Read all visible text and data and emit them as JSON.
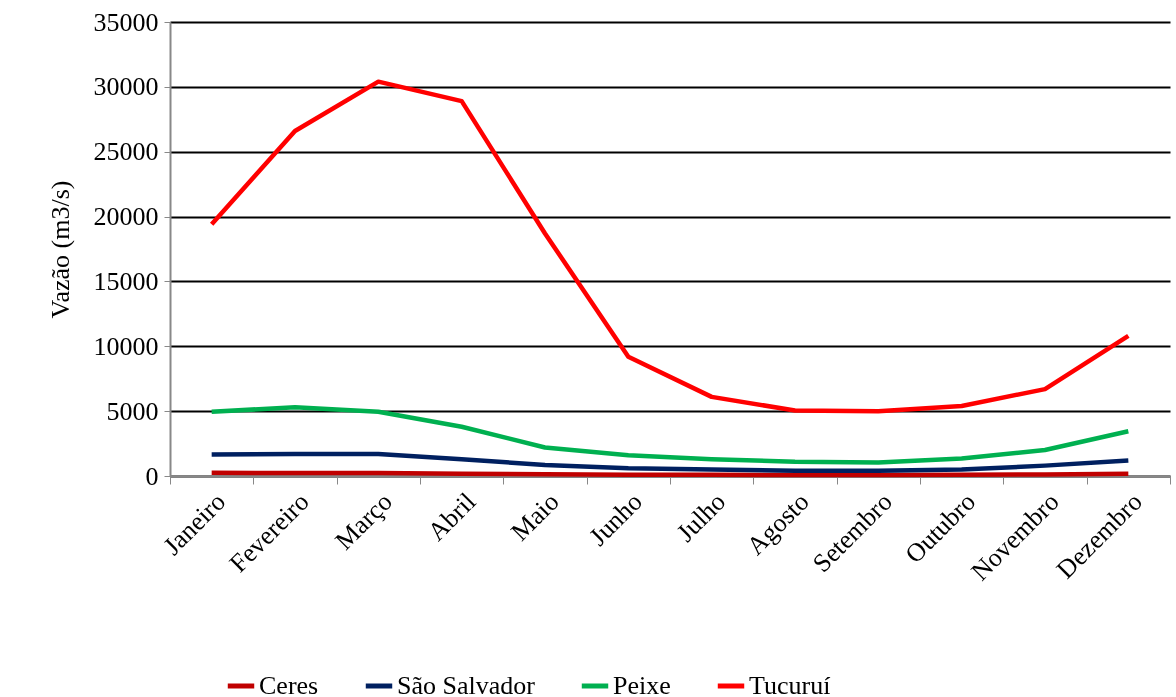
{
  "chart_data": {
    "type": "line",
    "ylabel": "Vazão (m3/s)",
    "categories": [
      "Janeiro",
      "Fevereiro",
      "Março",
      "Abril",
      "Maio",
      "Junho",
      "Julho",
      "Agosto",
      "Setembro",
      "Outubro",
      "Novembro",
      "Dezembro"
    ],
    "series": [
      {
        "name": "Ceres",
        "color": "#c00000",
        "values": [
          250,
          230,
          240,
          180,
          130,
          100,
          90,
          80,
          80,
          90,
          120,
          180
        ]
      },
      {
        "name": "São Salvador",
        "color": "#002060",
        "values": [
          1650,
          1700,
          1700,
          1300,
          850,
          600,
          500,
          400,
          400,
          500,
          800,
          1200
        ]
      },
      {
        "name": "Peixe",
        "color": "#00b050",
        "values": [
          4950,
          5300,
          4950,
          3800,
          2200,
          1600,
          1300,
          1100,
          1050,
          1350,
          2000,
          3450
        ]
      },
      {
        "name": "Tucuruí",
        "color": "#ff0000",
        "values": [
          19400,
          26600,
          30400,
          28900,
          18700,
          9200,
          6100,
          5050,
          5000,
          5400,
          6700,
          10800
        ]
      }
    ],
    "ylim": [
      0,
      35000
    ],
    "yticks": [
      0,
      5000,
      10000,
      15000,
      20000,
      25000,
      30000,
      35000
    ],
    "grid": "y",
    "legend": "bottom",
    "marker": "none",
    "line_style": "solid"
  }
}
